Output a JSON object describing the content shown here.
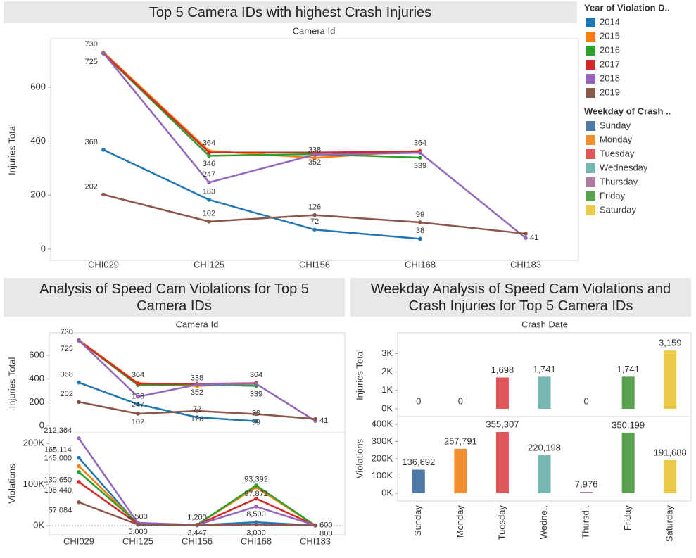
{
  "chart_data": [
    {
      "type": "line",
      "title": "Top 5 Camera IDs with highest Crash Injuries",
      "x_header": "Camera Id",
      "ylabel": "Injuries Total",
      "categories": [
        "CHI029",
        "CHI125",
        "CHI156",
        "CHI168",
        "CHI183"
      ],
      "ylim": [
        -42,
        780
      ],
      "yticks": [
        0,
        200,
        400,
        600
      ],
      "legend": {
        "title": "Year of Violation D.."
      },
      "series": [
        {
          "name": "2014",
          "color": "#1f77b4",
          "values": [
            368,
            183,
            72,
            38,
            null
          ]
        },
        {
          "name": "2015",
          "color": "#ff7f0e",
          "values": [
            730,
            364,
            338,
            364,
            null
          ]
        },
        {
          "name": "2016",
          "color": "#2ca02c",
          "values": [
            725,
            346,
            352,
            339,
            null
          ]
        },
        {
          "name": "2017",
          "color": "#d62728",
          "values": [
            726,
            358,
            358,
            362,
            null
          ]
        },
        {
          "name": "2018",
          "color": "#9467bd",
          "values": [
            727,
            247,
            350,
            357,
            41
          ]
        },
        {
          "name": "2019",
          "color": "#8c564b",
          "values": [
            202,
            102,
            126,
            99,
            57
          ]
        }
      ]
    },
    {
      "type": "line",
      "title": "Analysis of Speed Cam Violations for Top 5 Camera IDs",
      "x_header": "Camera Id",
      "categories": [
        "CHI029",
        "CHI125",
        "CHI156",
        "CHI168",
        "CHI183"
      ],
      "panes": [
        {
          "ylabel": "Injuries Total",
          "ylim": [
            -60,
            792
          ],
          "yticks": [
            0,
            200,
            400,
            600
          ],
          "series": [
            {
              "color": "#1f77b4",
              "values": [
                368,
                183,
                72,
                38,
                null
              ]
            },
            {
              "color": "#ff7f0e",
              "values": [
                730,
                364,
                338,
                364,
                null
              ]
            },
            {
              "color": "#2ca02c",
              "values": [
                725,
                346,
                352,
                339,
                null
              ]
            },
            {
              "color": "#d62728",
              "values": [
                726,
                358,
                358,
                362,
                null
              ]
            },
            {
              "color": "#9467bd",
              "values": [
                727,
                247,
                350,
                357,
                41
              ]
            },
            {
              "color": "#8c564b",
              "values": [
                202,
                102,
                126,
                99,
                57
              ]
            }
          ]
        },
        {
          "ylabel": "Violations",
          "ylim": [
            -22000,
            226000
          ],
          "yticks": [
            {
              "value": 0,
              "label": "0K"
            },
            {
              "value": 100000,
              "label": "100K"
            },
            {
              "value": 200000,
              "label": "200K"
            }
          ],
          "series": [
            {
              "color": "#1f77b4",
              "values": [
                165114,
                2500,
                1200,
                8500,
                600
              ],
              "value_labels": [
                "165,114",
                "2,500",
                "1,200",
                "8,500",
                "600"
              ]
            },
            {
              "color": "#ff7f0e",
              "values": [
                145000,
                5000,
                2447,
                93392,
                800
              ],
              "value_labels": [
                "145,000",
                "5,000",
                "2,447",
                "93,392",
                "800"
              ]
            },
            {
              "color": "#2ca02c",
              "values": [
                130650,
                5759,
                2200,
                97872,
                700
              ],
              "value_labels": [
                "130,650",
                "5,759",
                "2,200",
                "97,872",
                "700"
              ]
            },
            {
              "color": "#d62728",
              "values": [
                106440,
                4000,
                1800,
                65888,
                900
              ],
              "value_labels": [
                "106,440",
                "4,000",
                "1,800",
                "65,888",
                "900"
              ]
            },
            {
              "color": "#9467bd",
              "values": [
                212364,
                7000,
                2000,
                46584,
                1132
              ],
              "value_labels": [
                "212,364",
                "7,000",
                "2,000",
                "46,584",
                "1,132"
              ]
            },
            {
              "color": "#8c564b",
              "values": [
                57084,
                3000,
                1000,
                3000,
                400
              ],
              "value_labels": [
                "57,084",
                "3,000",
                "1,000",
                "3,000",
                "400"
              ]
            }
          ]
        }
      ]
    },
    {
      "type": "bar",
      "title": "Weekday Analysis of Speed Cam Violations and Crash Injuries for Top 5 Camera IDs",
      "x_header": "Crash Date",
      "categories": [
        "Sunday",
        "Monday",
        "Tuesday",
        "Wedne..",
        "Thursd..",
        "Friday",
        "Saturday"
      ],
      "colors": [
        "#4e79a7",
        "#f28e2b",
        "#e15759",
        "#76b7b2",
        "#b07aa1",
        "#59a14f",
        "#edc948"
      ],
      "legend": {
        "title": "Weekday of Crash ..",
        "items": [
          "Sunday",
          "Monday",
          "Tuesday",
          "Wednesday",
          "Thursday",
          "Friday",
          "Saturday"
        ]
      },
      "panes": [
        {
          "ylabel": "Injuries Total",
          "ylim": [
            -420,
            4120
          ],
          "yticks": [
            {
              "value": 0,
              "label": "0K"
            },
            {
              "value": 1000,
              "label": "1K"
            },
            {
              "value": 2000,
              "label": "2K"
            },
            {
              "value": 3000,
              "label": "3K"
            }
          ],
          "values": [
            0,
            0,
            1698,
            1741,
            0,
            1741,
            3159
          ],
          "value_labels": [
            "0",
            "0",
            "1,698",
            "1,741",
            "0",
            "1,741",
            "3,159"
          ]
        },
        {
          "ylabel": "Violations",
          "ylim": [
            -45000,
            445000
          ],
          "yticks": [
            {
              "value": 0,
              "label": "0K"
            },
            {
              "value": 100000,
              "label": "100K"
            },
            {
              "value": 200000,
              "label": "200K"
            },
            {
              "value": 300000,
              "label": "300K"
            },
            {
              "value": 400000,
              "label": "400K"
            }
          ],
          "values": [
            136692,
            257791,
            355307,
            220198,
            7976,
            350199,
            191688
          ],
          "value_labels": [
            "136,692",
            "257,791",
            "355,307",
            "220,198",
            "7,976",
            "350,199",
            "191,688"
          ]
        }
      ]
    }
  ]
}
